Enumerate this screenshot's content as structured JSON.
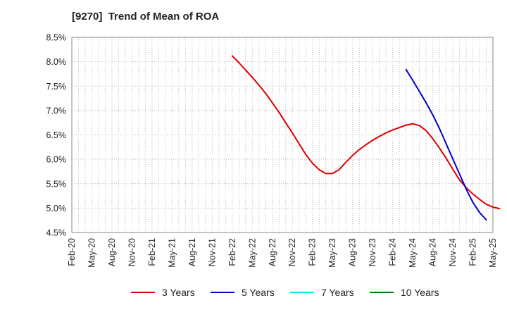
{
  "chart_title": "[9270]  Trend of Mean of ROA",
  "colors": {
    "three_year": "#dd0000",
    "five_year": "#0000cc",
    "seven_year": "#00e5ee",
    "ten_year": "#008000",
    "grid": "#bbbbbb",
    "axis": "#888888"
  },
  "chart_data": {
    "type": "line",
    "title": "[9270]  Trend of Mean of ROA",
    "xlabel": "",
    "ylabel": "",
    "x_ticks": [
      "Feb-20",
      "May-20",
      "Aug-20",
      "Nov-20",
      "Feb-21",
      "May-21",
      "Aug-21",
      "Nov-21",
      "Feb-22",
      "May-22",
      "Aug-22",
      "Nov-22",
      "Feb-23",
      "May-23",
      "Aug-23",
      "Nov-23",
      "Feb-24",
      "May-24",
      "Aug-24",
      "Nov-24",
      "Feb-25",
      "May-25"
    ],
    "y_ticks": [
      "4.5%",
      "5.0%",
      "5.5%",
      "6.0%",
      "6.5%",
      "7.0%",
      "7.5%",
      "8.0%",
      "8.5%"
    ],
    "ylim": [
      4.5,
      8.5
    ],
    "grid": true,
    "legend_position": "bottom",
    "series": [
      {
        "name": "3 Years",
        "color": "#dd0000",
        "points": [
          [
            "Feb-22",
            8.12
          ],
          [
            "Mar-22",
            7.98
          ],
          [
            "Apr-22",
            7.83
          ],
          [
            "May-22",
            7.68
          ],
          [
            "Jun-22",
            7.52
          ],
          [
            "Jul-22",
            7.35
          ],
          [
            "Aug-22",
            7.16
          ],
          [
            "Sep-22",
            6.96
          ],
          [
            "Oct-22",
            6.75
          ],
          [
            "Nov-22",
            6.54
          ],
          [
            "Dec-22",
            6.32
          ],
          [
            "Jan-23",
            6.1
          ],
          [
            "Feb-23",
            5.92
          ],
          [
            "Mar-23",
            5.79
          ],
          [
            "Apr-23",
            5.71
          ],
          [
            "May-23",
            5.71
          ],
          [
            "Jun-23",
            5.79
          ],
          [
            "Jul-23",
            5.94
          ],
          [
            "Aug-23",
            6.08
          ],
          [
            "Sep-23",
            6.2
          ],
          [
            "Oct-23",
            6.3
          ],
          [
            "Nov-23",
            6.39
          ],
          [
            "Dec-23",
            6.47
          ],
          [
            "Jan-24",
            6.54
          ],
          [
            "Feb-24",
            6.6
          ],
          [
            "Mar-24",
            6.65
          ],
          [
            "Apr-24",
            6.7
          ],
          [
            "May-24",
            6.73
          ],
          [
            "Jun-24",
            6.69
          ],
          [
            "Jul-24",
            6.59
          ],
          [
            "Aug-24",
            6.42
          ],
          [
            "Sep-24",
            6.23
          ],
          [
            "Oct-24",
            6.02
          ],
          [
            "Nov-24",
            5.8
          ],
          [
            "Dec-24",
            5.58
          ],
          [
            "Jan-25",
            5.42
          ],
          [
            "Feb-25",
            5.29
          ],
          [
            "Mar-25",
            5.18
          ],
          [
            "Apr-25",
            5.08
          ],
          [
            "May-25",
            5.02
          ],
          [
            "Jun-25",
            4.99
          ]
        ]
      },
      {
        "name": "5 Years",
        "color": "#0000cc",
        "points": [
          [
            "Apr-24",
            7.84
          ],
          [
            "May-24",
            7.62
          ],
          [
            "Jun-24",
            7.39
          ],
          [
            "Jul-24",
            7.16
          ],
          [
            "Aug-24",
            6.91
          ],
          [
            "Sep-24",
            6.63
          ],
          [
            "Oct-24",
            6.32
          ],
          [
            "Nov-24",
            6.01
          ],
          [
            "Dec-24",
            5.7
          ],
          [
            "Jan-25",
            5.39
          ],
          [
            "Feb-25",
            5.12
          ],
          [
            "Mar-25",
            4.91
          ],
          [
            "Apr-25",
            4.76
          ]
        ]
      },
      {
        "name": "7 Years",
        "color": "#00e5ee",
        "points": []
      },
      {
        "name": "10 Years",
        "color": "#008000",
        "points": []
      }
    ]
  },
  "legend": [
    {
      "label": "3 Years",
      "color": "#dd0000"
    },
    {
      "label": "5 Years",
      "color": "#0000cc"
    },
    {
      "label": "7 Years",
      "color": "#00e5ee"
    },
    {
      "label": "10 Years",
      "color": "#008000"
    }
  ]
}
